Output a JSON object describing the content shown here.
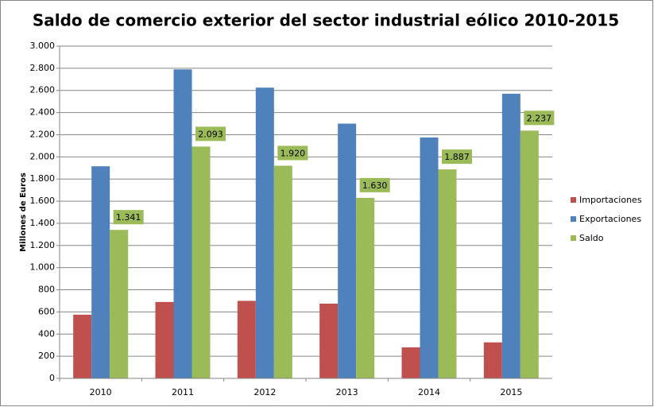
{
  "chart_data": {
    "type": "bar",
    "title": "Saldo de comercio exterior del sector industrial eólico 2010-2015",
    "y_label": "Millones de Euros",
    "categories": [
      "2010",
      "2011",
      "2012",
      "2013",
      "2014",
      "2015"
    ],
    "series": [
      {
        "name": "Importaciones",
        "color": "#c0504d",
        "values": [
          575,
          690,
          700,
          675,
          280,
          325
        ]
      },
      {
        "name": "Exportaciones",
        "color": "#4f81bd",
        "values": [
          1915,
          2790,
          2625,
          2300,
          2175,
          2570
        ]
      },
      {
        "name": "Saldo",
        "color": "#9bbb59",
        "values": [
          1341,
          2093,
          1920,
          1630,
          1887,
          2237
        ],
        "value_labels": [
          "1.341",
          "2.093",
          "1.920",
          "1.630",
          "1.887",
          "2.237"
        ]
      }
    ],
    "ylim": [
      0,
      3000
    ],
    "yticks": [
      0,
      200,
      400,
      600,
      800,
      {
        "value": 1000,
        "label": "1.000"
      },
      {
        "value": 1200,
        "label": "1.200"
      },
      {
        "value": 1400,
        "label": "1.400"
      },
      {
        "value": 1600,
        "label": "1.600"
      },
      {
        "value": 1800,
        "label": "1.800"
      },
      {
        "value": 2000,
        "label": "2.000"
      },
      {
        "value": 2200,
        "label": "2.200"
      },
      {
        "value": 2400,
        "label": "2.400"
      },
      {
        "value": 2600,
        "label": "2.600"
      },
      {
        "value": 2800,
        "label": "2.800"
      },
      {
        "value": 3000,
        "label": "3.000"
      }
    ],
    "grid": true,
    "legend": "right"
  }
}
